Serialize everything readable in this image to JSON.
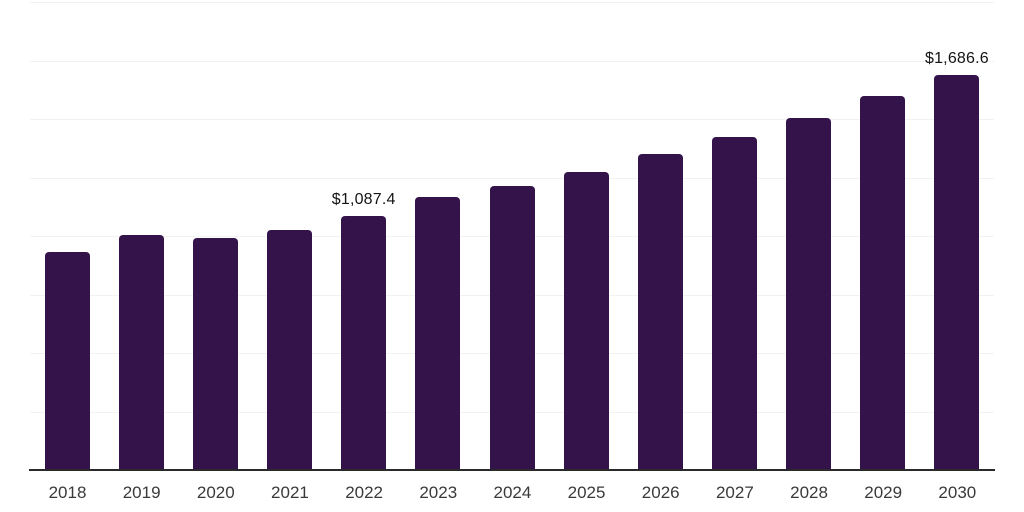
{
  "chart_data": {
    "type": "bar",
    "title": "",
    "xlabel": "",
    "ylabel": "",
    "categories": [
      "2018",
      "2019",
      "2020",
      "2021",
      "2022",
      "2023",
      "2024",
      "2025",
      "2026",
      "2027",
      "2028",
      "2029",
      "2030"
    ],
    "values": [
      933,
      1003,
      992,
      1024,
      1087.4,
      1165,
      1213,
      1275,
      1349,
      1424,
      1506,
      1597,
      1686.6
    ],
    "ylim": [
      0,
      2000
    ],
    "gridline_step": 250,
    "grid": true,
    "legend": "none",
    "value_labels": [
      {
        "category": "2022",
        "index": 4,
        "text": "$1,087.4"
      },
      {
        "category": "2030",
        "index": 12,
        "text": "$1,686.6"
      }
    ]
  },
  "colors": {
    "bar": "#33134a",
    "axis_line": "#2a2a2a",
    "grid_line": "#f2f2f2",
    "value_label_text": "#141414",
    "tick_text": "#3a3a3a",
    "background": "#ffffff"
  }
}
